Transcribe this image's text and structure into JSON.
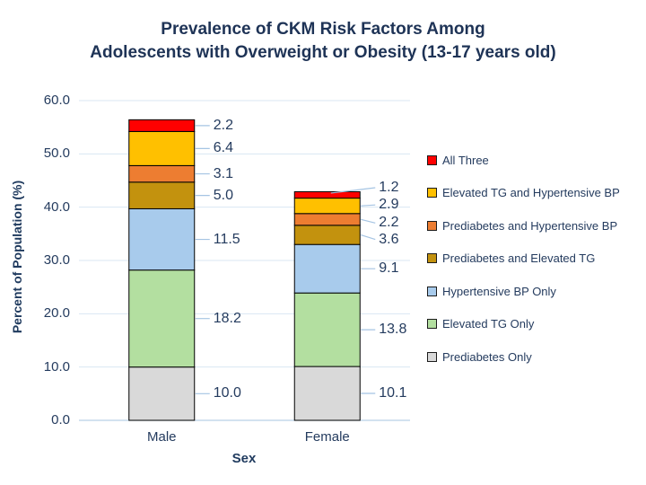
{
  "title": {
    "line1": "Prevalence of CKM Risk Factors Among",
    "line2": "Adolescents with Overweight or Obesity (13-17 years old)"
  },
  "chart_data": {
    "type": "bar",
    "subtype": "stacked-column",
    "categories": [
      "Male",
      "Female"
    ],
    "series": [
      {
        "name": "All Three",
        "color": "#FF0000",
        "values": [
          2.2,
          1.2
        ]
      },
      {
        "name": "Elevated TG and Hypertensive BP",
        "color": "#FFC000",
        "values": [
          6.4,
          2.9
        ]
      },
      {
        "name": "Prediabetes and Hypertensive BP",
        "color": "#ED7D31",
        "values": [
          3.1,
          2.2
        ]
      },
      {
        "name": "Prediabetes and Elevated TG",
        "color": "#C3920E",
        "values": [
          5.0,
          3.6
        ]
      },
      {
        "name": "Hypertensive BP Only",
        "color": "#A8CBEC",
        "values": [
          11.5,
          9.1
        ]
      },
      {
        "name": "Elevated TG Only",
        "color": "#B3DFA0",
        "values": [
          18.2,
          13.8
        ]
      },
      {
        "name": "Prediabetes Only",
        "color": "#D9D9D9",
        "values": [
          10.0,
          10.1
        ]
      }
    ],
    "xlabel": "Sex",
    "ylabel": "Percent of Population (%)",
    "ylim": [
      0,
      60
    ],
    "y_ticks": [
      "0.0",
      "10.0",
      "20.0",
      "30.0",
      "40.0",
      "50.0",
      "60.0"
    ],
    "grid": true,
    "legend_position": "right",
    "colors": {
      "gridline": "#DAE7F3",
      "axis_line": "#B9D1E8",
      "leader_line": "#A5C4E3",
      "text": "#243B5E",
      "title": "#1E3356",
      "segment_border": "#000000"
    }
  }
}
